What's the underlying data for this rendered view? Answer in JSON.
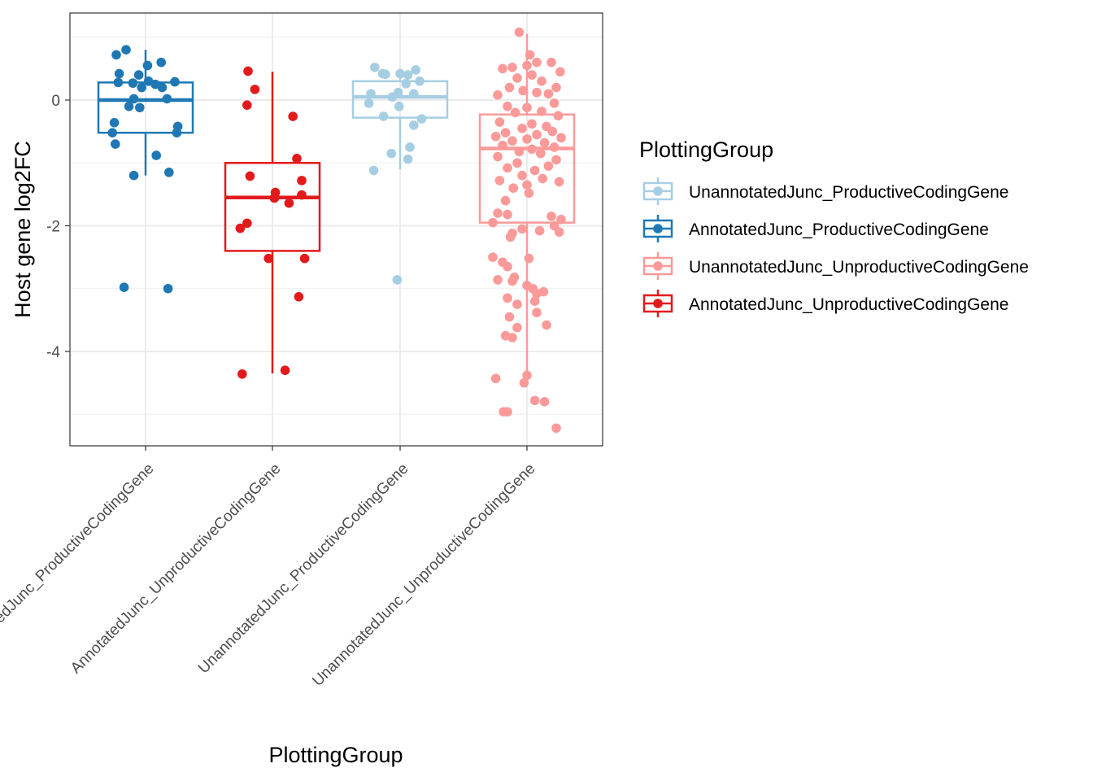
{
  "chart_data": {
    "type": "boxplot",
    "xlabel": "PlottingGroup",
    "ylabel": "Host gene log2FC",
    "ylim": [
      -5.5,
      1.4
    ],
    "yticks": [
      0,
      -2,
      -4
    ],
    "ytick_labels": [
      "0",
      "-2",
      "-4"
    ],
    "grid": true,
    "categories": [
      "AnnotatedJunc_ProductiveCodingGene",
      "AnnotatedJunc_UnproductiveCodingGene",
      "UnannotatedJunc_ProductiveCodingGene",
      "UnannotatedJunc_UnproductiveCodingGene"
    ],
    "legend": {
      "title": "PlottingGroup",
      "position": "right",
      "entries": [
        {
          "label": "UnannotatedJunc_ProductiveCodingGene",
          "color": "#a6cee3"
        },
        {
          "label": "AnnotatedJunc_ProductiveCodingGene",
          "color": "#1f78b4"
        },
        {
          "label": "UnannotatedJunc_UnproductiveCodingGene",
          "color": "#fb9a99"
        },
        {
          "label": "AnnotatedJunc_UnproductiveCodingGene",
          "color": "#e31a1c"
        }
      ]
    },
    "series": [
      {
        "category": "AnnotatedJunc_ProductiveCodingGene",
        "color": "#1f78b4",
        "box": {
          "q1": -0.52,
          "median": 0.0,
          "q3": 0.28,
          "whisker_low": -1.2,
          "whisker_high": 0.8
        },
        "points": [
          {
            "dx": -0.3,
            "y": 0.72
          },
          {
            "dx": -0.2,
            "y": 0.8
          },
          {
            "dx": 0.02,
            "y": 0.55
          },
          {
            "dx": 0.16,
            "y": 0.6
          },
          {
            "dx": -0.27,
            "y": 0.42
          },
          {
            "dx": -0.07,
            "y": 0.4
          },
          {
            "dx": -0.28,
            "y": 0.28
          },
          {
            "dx": -0.13,
            "y": 0.27
          },
          {
            "dx": 0.03,
            "y": 0.3
          },
          {
            "dx": 0.3,
            "y": 0.29
          },
          {
            "dx": 0.1,
            "y": 0.25
          },
          {
            "dx": 0.17,
            "y": 0.2
          },
          {
            "dx": -0.04,
            "y": 0.2
          },
          {
            "dx": -0.12,
            "y": 0.02
          },
          {
            "dx": 0.22,
            "y": 0.02
          },
          {
            "dx": -0.17,
            "y": -0.1
          },
          {
            "dx": -0.06,
            "y": -0.12
          },
          {
            "dx": -0.32,
            "y": -0.36
          },
          {
            "dx": 0.33,
            "y": -0.42
          },
          {
            "dx": -0.34,
            "y": -0.52
          },
          {
            "dx": 0.32,
            "y": -0.52
          },
          {
            "dx": -0.31,
            "y": -0.7
          },
          {
            "dx": 0.11,
            "y": -0.88
          },
          {
            "dx": 0.24,
            "y": -1.15
          },
          {
            "dx": -0.12,
            "y": -1.2
          },
          {
            "dx": -0.22,
            "y": -2.98
          },
          {
            "dx": 0.23,
            "y": -3.0
          }
        ]
      },
      {
        "category": "AnnotatedJunc_UnproductiveCodingGene",
        "color": "#e31a1c",
        "box": {
          "q1": -2.4,
          "median": -1.55,
          "q3": -1.0,
          "whisker_low": -4.35,
          "whisker_high": 0.45
        },
        "points": [
          {
            "dx": -0.25,
            "y": 0.46
          },
          {
            "dx": -0.18,
            "y": 0.17
          },
          {
            "dx": -0.26,
            "y": -0.08
          },
          {
            "dx": 0.21,
            "y": -0.26
          },
          {
            "dx": 0.25,
            "y": -0.93
          },
          {
            "dx": -0.23,
            "y": -1.21
          },
          {
            "dx": 0.3,
            "y": -1.28
          },
          {
            "dx": 0.03,
            "y": -1.47
          },
          {
            "dx": 0.3,
            "y": -1.51
          },
          {
            "dx": 0.02,
            "y": -1.56
          },
          {
            "dx": 0.17,
            "y": -1.64
          },
          {
            "dx": -0.26,
            "y": -1.96
          },
          {
            "dx": -0.33,
            "y": -2.04
          },
          {
            "dx": -0.04,
            "y": -2.52
          },
          {
            "dx": 0.33,
            "y": -2.52
          },
          {
            "dx": 0.27,
            "y": -3.13
          },
          {
            "dx": -0.31,
            "y": -4.36
          },
          {
            "dx": 0.13,
            "y": -4.3
          }
        ]
      },
      {
        "category": "UnannotatedJunc_ProductiveCodingGene",
        "color": "#a6cee3",
        "box": {
          "q1": -0.28,
          "median": 0.05,
          "q3": 0.3,
          "whisker_low": -1.1,
          "whisker_high": 0.5
        },
        "points": [
          {
            "dx": -0.26,
            "y": 0.52
          },
          {
            "dx": 0.16,
            "y": 0.48
          },
          {
            "dx": -0.18,
            "y": 0.42
          },
          {
            "dx": -0.15,
            "y": 0.41
          },
          {
            "dx": 0.0,
            "y": 0.42
          },
          {
            "dx": 0.08,
            "y": 0.4
          },
          {
            "dx": 0.2,
            "y": 0.3
          },
          {
            "dx": 0.06,
            "y": 0.26
          },
          {
            "dx": -0.3,
            "y": 0.1
          },
          {
            "dx": -0.02,
            "y": 0.12
          },
          {
            "dx": 0.14,
            "y": 0.1
          },
          {
            "dx": -0.08,
            "y": 0.05
          },
          {
            "dx": -0.32,
            "y": -0.05
          },
          {
            "dx": -0.01,
            "y": -0.1
          },
          {
            "dx": -0.17,
            "y": -0.26
          },
          {
            "dx": 0.22,
            "y": -0.3
          },
          {
            "dx": 0.14,
            "y": -0.4
          },
          {
            "dx": 0.1,
            "y": -0.75
          },
          {
            "dx": -0.09,
            "y": -0.85
          },
          {
            "dx": 0.08,
            "y": -0.94
          },
          {
            "dx": -0.27,
            "y": -1.12
          },
          {
            "dx": -0.03,
            "y": -2.86
          }
        ]
      },
      {
        "category": "UnannotatedJunc_UnproductiveCodingGene",
        "color": "#fb9a99",
        "box": {
          "q1": -1.95,
          "median": -0.77,
          "q3": -0.23,
          "whisker_low": -4.4,
          "whisker_high": 1.05
        },
        "points": [
          {
            "dx": -0.08,
            "y": 1.08
          },
          {
            "dx": 0.03,
            "y": 0.72
          },
          {
            "dx": -0.15,
            "y": 0.52
          },
          {
            "dx": 0.0,
            "y": 0.55
          },
          {
            "dx": 0.1,
            "y": 0.6
          },
          {
            "dx": 0.25,
            "y": 0.6
          },
          {
            "dx": 0.34,
            "y": 0.45
          },
          {
            "dx": -0.25,
            "y": 0.5
          },
          {
            "dx": 0.05,
            "y": 0.4
          },
          {
            "dx": -0.1,
            "y": 0.35
          },
          {
            "dx": 0.15,
            "y": 0.3
          },
          {
            "dx": -0.18,
            "y": 0.2
          },
          {
            "dx": 0.3,
            "y": 0.2
          },
          {
            "dx": -0.04,
            "y": 0.15
          },
          {
            "dx": 0.1,
            "y": 0.12
          },
          {
            "dx": 0.22,
            "y": 0.1
          },
          {
            "dx": -0.3,
            "y": 0.08
          },
          {
            "dx": 0.28,
            "y": -0.05
          },
          {
            "dx": -0.2,
            "y": -0.1
          },
          {
            "dx": 0.0,
            "y": -0.12
          },
          {
            "dx": 0.15,
            "y": -0.18
          },
          {
            "dx": -0.12,
            "y": -0.2
          },
          {
            "dx": 0.32,
            "y": -0.25
          },
          {
            "dx": -0.28,
            "y": -0.35
          },
          {
            "dx": 0.05,
            "y": -0.38
          },
          {
            "dx": 0.2,
            "y": -0.42
          },
          {
            "dx": -0.05,
            "y": -0.45
          },
          {
            "dx": 0.26,
            "y": -0.5
          },
          {
            "dx": -0.22,
            "y": -0.52
          },
          {
            "dx": 0.1,
            "y": -0.55
          },
          {
            "dx": -0.32,
            "y": -0.58
          },
          {
            "dx": 0.35,
            "y": -0.6
          },
          {
            "dx": 0.0,
            "y": -0.62
          },
          {
            "dx": -0.15,
            "y": -0.65
          },
          {
            "dx": 0.18,
            "y": -0.68
          },
          {
            "dx": -0.25,
            "y": -0.72
          },
          {
            "dx": 0.28,
            "y": -0.75
          },
          {
            "dx": 0.05,
            "y": -0.78
          },
          {
            "dx": -0.08,
            "y": -0.82
          },
          {
            "dx": 0.14,
            "y": -0.85
          },
          {
            "dx": -0.3,
            "y": -0.9
          },
          {
            "dx": 0.3,
            "y": -0.95
          },
          {
            "dx": -0.1,
            "y": -1.0
          },
          {
            "dx": 0.22,
            "y": -1.05
          },
          {
            "dx": -0.2,
            "y": -1.08
          },
          {
            "dx": 0.08,
            "y": -1.12
          },
          {
            "dx": -0.05,
            "y": -1.2
          },
          {
            "dx": 0.16,
            "y": -1.25
          },
          {
            "dx": -0.28,
            "y": -1.28
          },
          {
            "dx": 0.33,
            "y": -1.3
          },
          {
            "dx": 0.0,
            "y": -1.35
          },
          {
            "dx": -0.14,
            "y": -1.4
          },
          {
            "dx": 0.02,
            "y": -1.48
          },
          {
            "dx": -0.22,
            "y": -1.6
          },
          {
            "dx": -0.3,
            "y": -1.8
          },
          {
            "dx": -0.2,
            "y": -1.82
          },
          {
            "dx": 0.25,
            "y": -1.85
          },
          {
            "dx": 0.35,
            "y": -1.9
          },
          {
            "dx": -0.35,
            "y": -1.95
          },
          {
            "dx": 0.28,
            "y": -2.0
          },
          {
            "dx": -0.05,
            "y": -2.05
          },
          {
            "dx": 0.13,
            "y": -2.08
          },
          {
            "dx": 0.33,
            "y": -2.1
          },
          {
            "dx": -0.15,
            "y": -2.12
          },
          {
            "dx": -0.17,
            "y": -2.18
          },
          {
            "dx": -0.35,
            "y": -2.5
          },
          {
            "dx": 0.02,
            "y": -2.52
          },
          {
            "dx": -0.25,
            "y": -2.58
          },
          {
            "dx": -0.2,
            "y": -2.65
          },
          {
            "dx": -0.13,
            "y": -2.82
          },
          {
            "dx": -0.3,
            "y": -2.86
          },
          {
            "dx": -0.15,
            "y": -2.88
          },
          {
            "dx": 0.0,
            "y": -2.95
          },
          {
            "dx": 0.06,
            "y": -3.0
          },
          {
            "dx": 0.17,
            "y": -3.05
          },
          {
            "dx": 0.1,
            "y": -3.08
          },
          {
            "dx": -0.2,
            "y": -3.15
          },
          {
            "dx": 0.08,
            "y": -3.2
          },
          {
            "dx": -0.1,
            "y": -3.25
          },
          {
            "dx": 0.1,
            "y": -3.38
          },
          {
            "dx": -0.18,
            "y": -3.45
          },
          {
            "dx": 0.2,
            "y": -3.58
          },
          {
            "dx": -0.1,
            "y": -3.62
          },
          {
            "dx": -0.22,
            "y": -3.75
          },
          {
            "dx": -0.15,
            "y": -3.78
          },
          {
            "dx": 0.0,
            "y": -4.38
          },
          {
            "dx": -0.03,
            "y": -4.5
          },
          {
            "dx": -0.32,
            "y": -4.43
          },
          {
            "dx": 0.08,
            "y": -4.78
          },
          {
            "dx": 0.18,
            "y": -4.8
          },
          {
            "dx": -0.24,
            "y": -4.96
          },
          {
            "dx": -0.2,
            "y": -4.96
          },
          {
            "dx": 0.3,
            "y": -5.22
          }
        ]
      }
    ]
  }
}
